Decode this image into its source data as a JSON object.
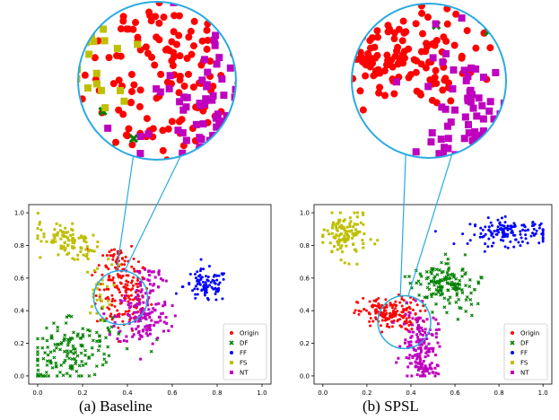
{
  "captions": {
    "a": "(a)  Baseline",
    "b": "(b)  SPSL"
  },
  "colors": {
    "Origin": "#ff0000",
    "DF": "#008000",
    "FF": "#0000ff",
    "FS": "#bfbf00",
    "NT": "#bf00bf",
    "zoom_circle": "#29abe2"
  },
  "chart_data": [
    {
      "type": "scatter",
      "name": "Baseline",
      "xlim": [
        -0.04,
        1.04
      ],
      "ylim": [
        -0.05,
        1.05
      ],
      "xticks": [
        "0.0",
        "0.2",
        "0.4",
        "0.6",
        "0.8",
        "1.0"
      ],
      "yticks": [
        "0.0",
        "0.2",
        "0.4",
        "0.6",
        "0.8",
        "1.0"
      ],
      "legend": {
        "placement": "lower-right",
        "entries": [
          "Origin",
          "DF",
          "FF",
          "FS",
          "NT"
        ]
      },
      "zoom": {
        "center": [
          0.37,
          0.48
        ],
        "radius": 0.12
      },
      "clusters": [
        {
          "series": "Origin",
          "center": [
            0.38,
            0.5
          ],
          "spread": [
            0.06,
            0.11
          ],
          "count": 150
        },
        {
          "series": "Origin",
          "center": [
            0.36,
            0.72
          ],
          "spread": [
            0.04,
            0.05
          ],
          "count": 40
        },
        {
          "series": "DF",
          "center": [
            0.15,
            0.15
          ],
          "spread": [
            0.13,
            0.08
          ],
          "count": 160,
          "elongated": true,
          "angle_deg": 35
        },
        {
          "series": "FF",
          "center": [
            0.75,
            0.55
          ],
          "spread": [
            0.05,
            0.05
          ],
          "count": 90
        },
        {
          "series": "FS",
          "center": [
            0.15,
            0.82
          ],
          "spread": [
            0.08,
            0.04
          ],
          "count": 110,
          "elongated": true,
          "angle_deg": -40
        },
        {
          "series": "FS",
          "center": [
            0.27,
            0.52
          ],
          "spread": [
            0.03,
            0.08
          ],
          "count": 25
        },
        {
          "series": "NT",
          "center": [
            0.47,
            0.36
          ],
          "spread": [
            0.06,
            0.09
          ],
          "count": 140
        },
        {
          "series": "NT",
          "center": [
            0.5,
            0.6
          ],
          "spread": [
            0.04,
            0.04
          ],
          "count": 30
        }
      ]
    },
    {
      "type": "scatter",
      "name": "SPSL",
      "xlim": [
        -0.04,
        1.04
      ],
      "ylim": [
        -0.05,
        1.05
      ],
      "xticks": [
        "0.0",
        "0.2",
        "0.4",
        "0.6",
        "0.8",
        "1.0"
      ],
      "yticks": [
        "0.0",
        "0.2",
        "0.4",
        "0.6",
        "0.8",
        "1.0"
      ],
      "legend": {
        "placement": "lower-right",
        "entries": [
          "Origin",
          "DF",
          "FF",
          "FS",
          "NT"
        ]
      },
      "zoom": {
        "center": [
          0.37,
          0.33
        ],
        "radius": 0.12
      },
      "clusters": [
        {
          "series": "Origin",
          "center": [
            0.3,
            0.38
          ],
          "spread": [
            0.07,
            0.05
          ],
          "count": 170
        },
        {
          "series": "DF",
          "center": [
            0.56,
            0.56
          ],
          "spread": [
            0.07,
            0.07
          ],
          "count": 150,
          "elongated": true,
          "angle_deg": 40
        },
        {
          "series": "FF",
          "center": [
            0.85,
            0.88
          ],
          "spread": [
            0.09,
            0.04
          ],
          "count": 140
        },
        {
          "series": "FS",
          "center": [
            0.1,
            0.86
          ],
          "spread": [
            0.05,
            0.07
          ],
          "count": 120
        },
        {
          "series": "NT",
          "center": [
            0.44,
            0.2
          ],
          "spread": [
            0.04,
            0.1
          ],
          "count": 140
        },
        {
          "series": "NT",
          "center": [
            0.46,
            0.03
          ],
          "spread": [
            0.03,
            0.03
          ],
          "count": 30
        }
      ]
    }
  ]
}
